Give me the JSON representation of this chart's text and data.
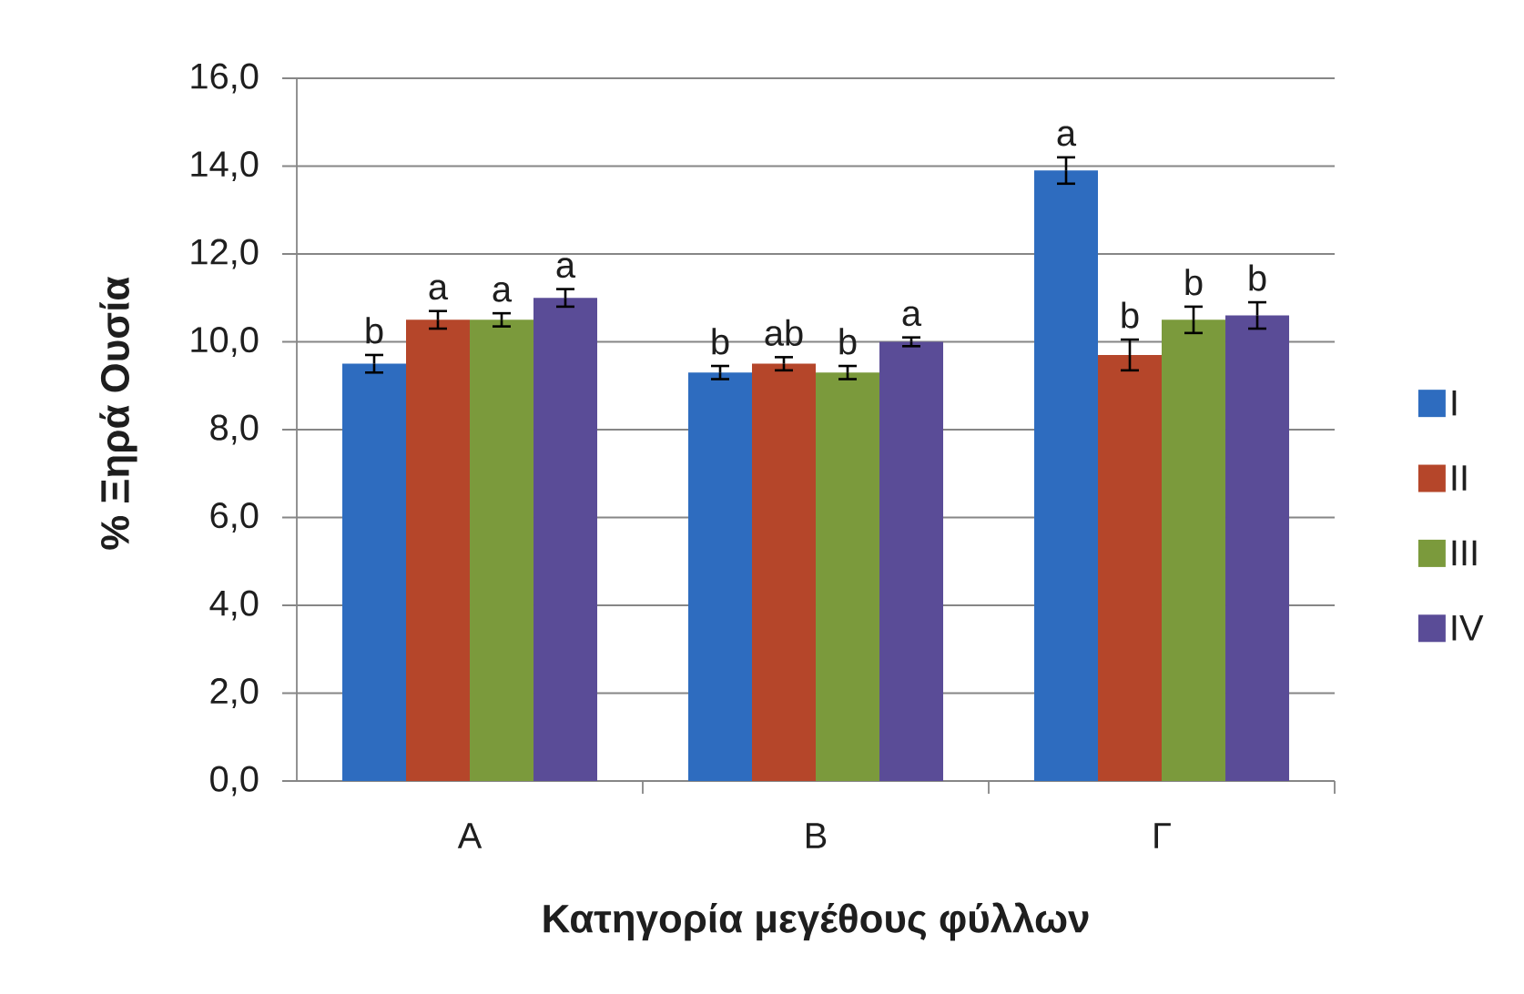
{
  "chart_data": {
    "type": "bar",
    "xlabel": "Κατηγορία μεγέθους φύλλων",
    "ylabel": "% Ξηρά Ουσία",
    "categories": [
      "Α",
      "Β",
      "Γ"
    ],
    "series": [
      {
        "name": "I",
        "color": "#2e6cbf",
        "values": [
          9.5,
          9.3,
          13.9
        ],
        "errors": [
          0.2,
          0.15,
          0.3
        ],
        "value_labels": [
          "b",
          "b",
          "a"
        ]
      },
      {
        "name": "II",
        "color": "#b5462a",
        "values": [
          10.5,
          9.5,
          9.7
        ],
        "errors": [
          0.2,
          0.15,
          0.35
        ],
        "value_labels": [
          "a",
          "ab",
          "b"
        ]
      },
      {
        "name": "III",
        "color": "#7b9a3c",
        "values": [
          10.5,
          9.3,
          10.5
        ],
        "errors": [
          0.15,
          0.15,
          0.3
        ],
        "value_labels": [
          "a",
          "b",
          "b"
        ]
      },
      {
        "name": "IV",
        "color": "#5a4c97",
        "values": [
          11.0,
          10.0,
          10.6
        ],
        "errors": [
          0.2,
          0.1,
          0.3
        ],
        "value_labels": [
          "a",
          "a",
          "b"
        ]
      }
    ],
    "ylim": [
      0,
      16
    ],
    "yticks": [
      {
        "value": 0,
        "label": "0,0"
      },
      {
        "value": 2,
        "label": "2,0"
      },
      {
        "value": 4,
        "label": "4,0"
      },
      {
        "value": 6,
        "label": "6,0"
      },
      {
        "value": 8,
        "label": "8,0"
      },
      {
        "value": 10,
        "label": "10,0"
      },
      {
        "value": 12,
        "label": "12,0"
      },
      {
        "value": 14,
        "label": "14,0"
      },
      {
        "value": 16,
        "label": "16,0"
      }
    ],
    "grid": "y",
    "legend": "right"
  }
}
